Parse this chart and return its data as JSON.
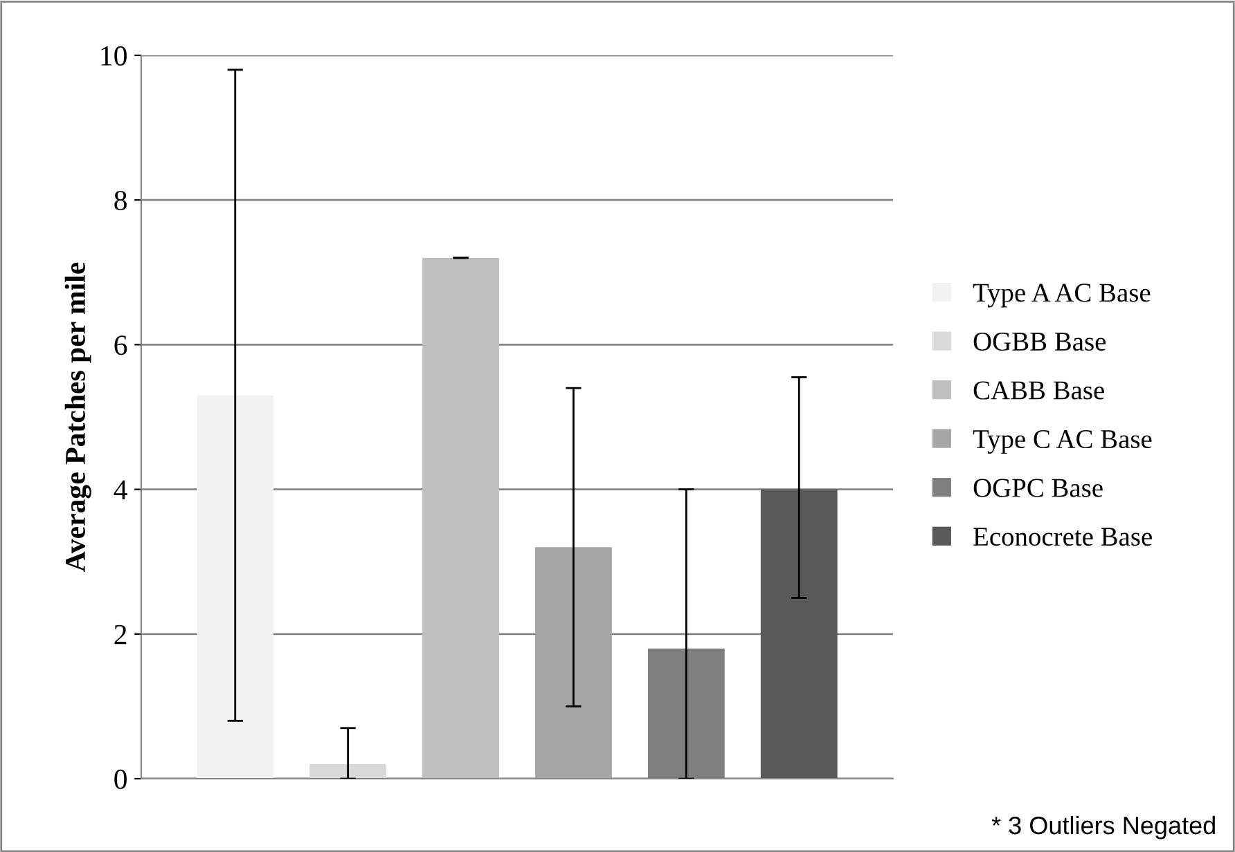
{
  "chart_data": {
    "type": "bar",
    "ylabel": "Average Patches per mile",
    "categories": [
      null
    ],
    "series": [
      {
        "name": "Type A AC Base",
        "color": "#f2f2f2",
        "values": [
          5.3
        ],
        "errors": [
          [
            0.8,
            9.8
          ]
        ]
      },
      {
        "name": "OGBB Base",
        "color": "#d9d9d9",
        "values": [
          0.2
        ],
        "errors": [
          [
            0,
            0.7
          ]
        ]
      },
      {
        "name": "CABB Base",
        "color": "#bfbfbf",
        "values": [
          7.2
        ],
        "errors": [
          [
            7.2,
            7.2
          ]
        ]
      },
      {
        "name": "Type C AC Base",
        "color": "#a6a6a6",
        "values": [
          3.2
        ],
        "errors": [
          [
            1.0,
            5.4
          ]
        ]
      },
      {
        "name": "OGPC Base",
        "color": "#7f7f7f",
        "values": [
          1.8
        ],
        "errors": [
          [
            0,
            4.0
          ]
        ]
      },
      {
        "name": "Econocrete Base",
        "color": "#595959",
        "values": [
          4.0
        ],
        "errors": [
          [
            2.5,
            5.55
          ]
        ]
      }
    ],
    "ylim": [
      0,
      10
    ],
    "yticks": [
      0,
      2,
      4,
      6,
      8,
      10
    ],
    "grid": "y",
    "legend": "right",
    "annotations": [
      "* 3 Outliers Negated"
    ]
  }
}
